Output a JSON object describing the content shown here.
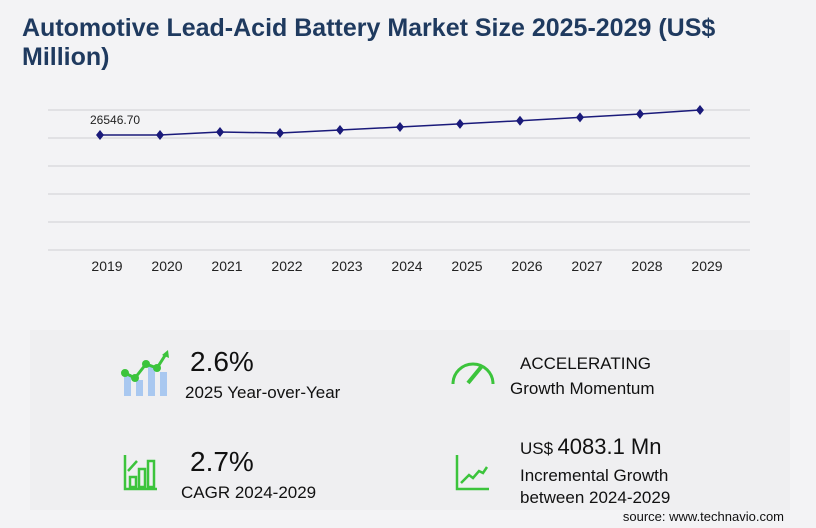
{
  "title": "Automotive Lead-Acid Battery Market Size 2025-2029 (US$ Million)",
  "chart_data": {
    "type": "line",
    "title": "Automotive Lead-Acid Battery Market Size 2025-2029 (US$ Million)",
    "categories": [
      "2019",
      "2020",
      "2021",
      "2022",
      "2023",
      "2024",
      "2025",
      "2026",
      "2027",
      "2028",
      "2029"
    ],
    "values": [
      26546.7,
      26560,
      27270,
      27030,
      27750,
      28470,
      29210,
      29980,
      30770,
      31580,
      32553
    ],
    "data_labels": {
      "2019": "26546.70"
    },
    "grid": true,
    "color": "#1a1a7a"
  },
  "stats": {
    "yoy_value": "2.6%",
    "yoy_label": "2025 Year-over-Year",
    "momentum_value": "ACCELERATING",
    "momentum_label": "Growth Momentum",
    "cagr_value": "2.7%",
    "cagr_label": "CAGR 2024-2029",
    "incr_prefix": "US$",
    "incr_value": "4083.1 Mn",
    "incr_label1": "Incremental Growth",
    "incr_label2": "between 2024-2029"
  },
  "accent": "#3cc43c",
  "source": "source: www.technavio.com"
}
